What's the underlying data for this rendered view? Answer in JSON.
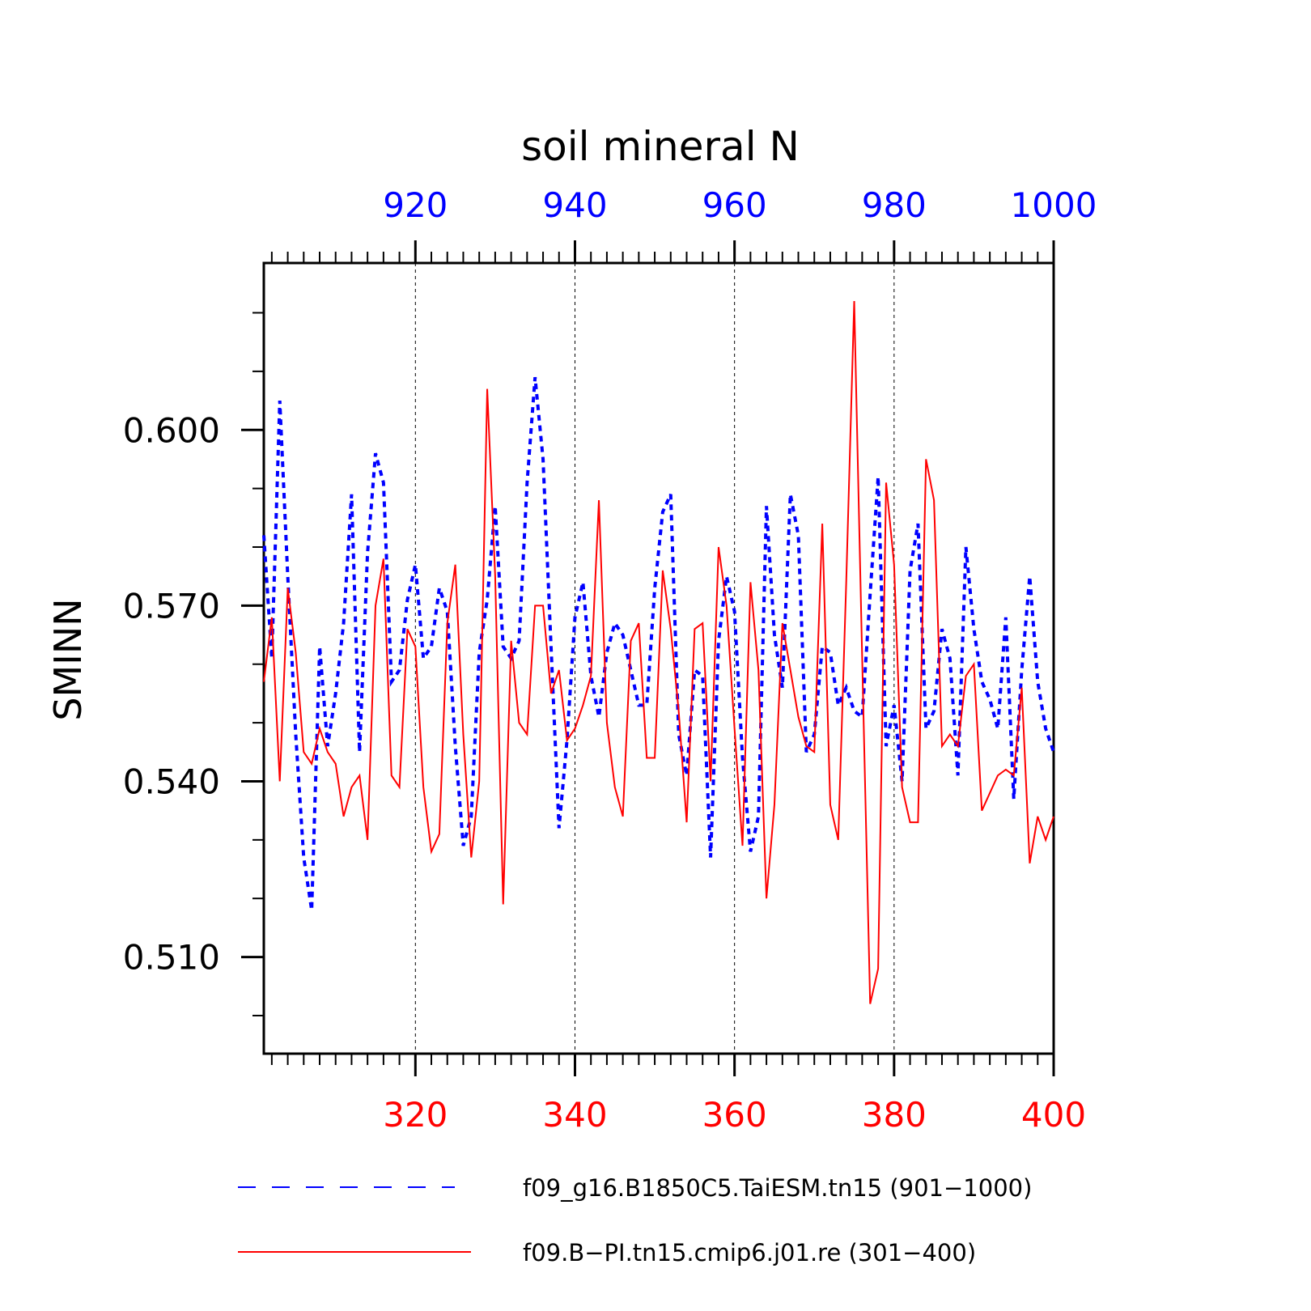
{
  "chart_data": {
    "type": "line",
    "title": "soil mineral N",
    "ylabel": "SMINN",
    "ylim": [
      0.4935,
      0.6285
    ],
    "yticks": [
      "0.510",
      "0.540",
      "0.570",
      "0.600"
    ],
    "yticks_values": [
      0.51,
      0.54,
      0.57,
      0.6
    ],
    "grid": "vertical dashed at major x ticks",
    "legend_position": "bottom",
    "series": [
      {
        "name": "f09_g16.B1850C5.TaiESM.tn15 (901−1000)",
        "color": "#0000ff",
        "style": "dashed",
        "axis": "top",
        "x_range": [
          901,
          1000
        ],
        "xticks": [
          "920",
          "940",
          "960",
          "980",
          "1000"
        ],
        "values": [
          0.582,
          0.561,
          0.605,
          0.575,
          0.548,
          0.527,
          0.518,
          0.563,
          0.546,
          0.555,
          0.567,
          0.589,
          0.545,
          0.579,
          0.596,
          0.591,
          0.557,
          0.559,
          0.571,
          0.577,
          0.561,
          0.563,
          0.573,
          0.569,
          0.546,
          0.529,
          0.534,
          0.562,
          0.571,
          0.587,
          0.563,
          0.561,
          0.564,
          0.591,
          0.609,
          0.595,
          0.563,
          0.532,
          0.547,
          0.568,
          0.574,
          0.558,
          0.551,
          0.562,
          0.567,
          0.565,
          0.559,
          0.553,
          0.553,
          0.573,
          0.586,
          0.589,
          0.548,
          0.541,
          0.559,
          0.558,
          0.527,
          0.564,
          0.575,
          0.569,
          0.544,
          0.528,
          0.534,
          0.587,
          0.565,
          0.556,
          0.589,
          0.582,
          0.545,
          0.548,
          0.563,
          0.562,
          0.553,
          0.556,
          0.552,
          0.551,
          0.572,
          0.592,
          0.546,
          0.553,
          0.54,
          0.576,
          0.584,
          0.549,
          0.552,
          0.566,
          0.561,
          0.541,
          0.58,
          0.566,
          0.557,
          0.554,
          0.549,
          0.568,
          0.537,
          0.559,
          0.575,
          0.557,
          0.549,
          0.545
        ]
      },
      {
        "name": "f09.B−PI.tn15.cmip6.j01.re (301−400)",
        "color": "#ff0000",
        "style": "solid",
        "axis": "bottom",
        "x_range": [
          301,
          400
        ],
        "xticks": [
          "320",
          "340",
          "360",
          "380",
          "400"
        ],
        "values": [
          0.557,
          0.568,
          0.54,
          0.573,
          0.562,
          0.545,
          0.543,
          0.549,
          0.545,
          0.543,
          0.534,
          0.539,
          0.541,
          0.53,
          0.57,
          0.578,
          0.541,
          0.539,
          0.566,
          0.563,
          0.539,
          0.528,
          0.531,
          0.567,
          0.577,
          0.548,
          0.527,
          0.54,
          0.607,
          0.575,
          0.519,
          0.564,
          0.55,
          0.548,
          0.57,
          0.57,
          0.555,
          0.559,
          0.547,
          0.549,
          0.553,
          0.558,
          0.588,
          0.55,
          0.539,
          0.534,
          0.564,
          0.567,
          0.544,
          0.544,
          0.576,
          0.566,
          0.552,
          0.533,
          0.566,
          0.567,
          0.54,
          0.58,
          0.57,
          0.549,
          0.529,
          0.574,
          0.559,
          0.52,
          0.536,
          0.567,
          0.559,
          0.551,
          0.546,
          0.545,
          0.584,
          0.536,
          0.53,
          0.574,
          0.622,
          0.561,
          0.502,
          0.508,
          0.591,
          0.577,
          0.539,
          0.533,
          0.533,
          0.595,
          0.588,
          0.546,
          0.548,
          0.546,
          0.558,
          0.56,
          0.535,
          0.538,
          0.541,
          0.542,
          0.541,
          0.556,
          0.526,
          0.534,
          0.53,
          0.534
        ]
      }
    ]
  }
}
